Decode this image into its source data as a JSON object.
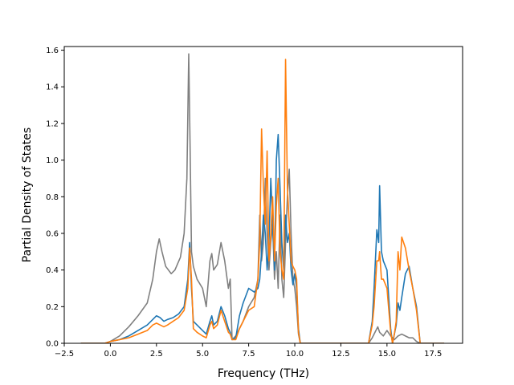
{
  "chart_data": {
    "type": "line",
    "title": "",
    "xlabel": "Frequency (THz)",
    "ylabel": "Partial Density of States",
    "xlim": [
      -2.5,
      19.1
    ],
    "ylim": [
      0,
      1.62
    ],
    "xticks": [
      -2.5,
      0.0,
      2.5,
      5.0,
      7.5,
      10.0,
      12.5,
      15.0,
      17.5
    ],
    "xtick_labels": [
      "−2.5",
      "0.0",
      "2.5",
      "5.0",
      "7.5",
      "10.0",
      "12.5",
      "15.0",
      "17.5"
    ],
    "yticks": [
      0.0,
      0.2,
      0.4,
      0.6,
      0.8,
      1.0,
      1.2,
      1.4,
      1.6
    ],
    "ytick_labels": [
      "0.0",
      "0.2",
      "0.4",
      "0.6",
      "0.8",
      "1.0",
      "1.2",
      "1.4",
      "1.6"
    ],
    "grid": false,
    "legend": "none",
    "series": [
      {
        "color": "#808080",
        "x": [
          -1.6,
          -0.3,
          0.0,
          0.5,
          1.0,
          1.5,
          2.0,
          2.3,
          2.5,
          2.65,
          2.8,
          3.0,
          3.3,
          3.5,
          3.8,
          4.0,
          4.15,
          4.25,
          4.32,
          4.4,
          4.5,
          4.7,
          5.0,
          5.2,
          5.4,
          5.5,
          5.6,
          5.8,
          6.0,
          6.2,
          6.4,
          6.5,
          6.6,
          6.8,
          7.0,
          7.2,
          7.5,
          7.8,
          8.0,
          8.1,
          8.2,
          8.3,
          8.4,
          8.5,
          8.6,
          8.7,
          8.8,
          8.9,
          9.0,
          9.1,
          9.2,
          9.3,
          9.4,
          9.5,
          9.6,
          9.7,
          9.8,
          9.9,
          10.0,
          10.1,
          10.2,
          10.3,
          10.5,
          12.0,
          14.0,
          14.2,
          14.4,
          14.5,
          14.6,
          14.8,
          15.0,
          15.2,
          15.4,
          15.6,
          15.8,
          16.0,
          16.2,
          16.4,
          16.6,
          16.8,
          18.1
        ],
        "y": [
          0.0,
          0.0,
          0.01,
          0.04,
          0.09,
          0.15,
          0.22,
          0.35,
          0.5,
          0.57,
          0.5,
          0.42,
          0.38,
          0.4,
          0.47,
          0.6,
          0.9,
          1.58,
          1.1,
          0.5,
          0.42,
          0.35,
          0.3,
          0.2,
          0.45,
          0.49,
          0.4,
          0.43,
          0.55,
          0.45,
          0.3,
          0.35,
          0.02,
          0.04,
          0.08,
          0.12,
          0.2,
          0.25,
          0.35,
          0.7,
          0.45,
          0.55,
          0.9,
          0.6,
          0.4,
          0.55,
          0.65,
          0.35,
          0.5,
          0.3,
          0.7,
          0.35,
          0.25,
          0.55,
          0.8,
          0.95,
          0.6,
          0.35,
          0.3,
          0.2,
          0.05,
          0.0,
          0.0,
          0.0,
          0.0,
          0.03,
          0.07,
          0.09,
          0.06,
          0.04,
          0.07,
          0.04,
          0.02,
          0.04,
          0.05,
          0.04,
          0.03,
          0.03,
          0.01,
          0.0,
          0.0
        ]
      },
      {
        "color": "#1f77b4",
        "x": [
          -1.6,
          -0.3,
          0.0,
          0.5,
          1.0,
          1.5,
          2.0,
          2.3,
          2.5,
          2.7,
          2.9,
          3.1,
          3.4,
          3.7,
          4.0,
          4.2,
          4.3,
          4.4,
          4.5,
          4.7,
          5.0,
          5.2,
          5.4,
          5.5,
          5.6,
          5.8,
          6.0,
          6.2,
          6.4,
          6.5,
          6.6,
          6.8,
          7.0,
          7.2,
          7.5,
          7.8,
          8.0,
          8.1,
          8.2,
          8.3,
          8.4,
          8.5,
          8.6,
          8.7,
          8.8,
          8.9,
          9.0,
          9.1,
          9.2,
          9.3,
          9.4,
          9.5,
          9.6,
          9.7,
          9.8,
          9.9,
          10.0,
          10.1,
          10.2,
          10.3,
          10.5,
          12.0,
          14.0,
          14.2,
          14.3,
          14.45,
          14.55,
          14.6,
          14.7,
          14.8,
          15.0,
          15.2,
          15.3,
          15.4,
          15.5,
          15.6,
          15.7,
          15.8,
          16.0,
          16.2,
          16.4,
          16.6,
          16.8,
          18.1
        ],
        "y": [
          0.0,
          0.0,
          0.01,
          0.02,
          0.04,
          0.07,
          0.1,
          0.13,
          0.15,
          0.14,
          0.12,
          0.13,
          0.14,
          0.16,
          0.2,
          0.35,
          0.55,
          0.3,
          0.12,
          0.1,
          0.07,
          0.05,
          0.12,
          0.15,
          0.1,
          0.12,
          0.2,
          0.15,
          0.08,
          0.06,
          0.02,
          0.03,
          0.15,
          0.22,
          0.3,
          0.28,
          0.3,
          0.35,
          0.5,
          0.7,
          0.6,
          0.4,
          0.55,
          0.9,
          0.65,
          0.4,
          1.0,
          1.14,
          0.85,
          0.55,
          0.4,
          0.7,
          0.55,
          0.6,
          0.4,
          0.32,
          0.38,
          0.3,
          0.08,
          0.0,
          0.0,
          0.0,
          0.0,
          0.12,
          0.3,
          0.62,
          0.55,
          0.86,
          0.5,
          0.45,
          0.4,
          0.08,
          0.0,
          0.05,
          0.1,
          0.22,
          0.18,
          0.25,
          0.38,
          0.42,
          0.3,
          0.2,
          0.0,
          0.0
        ]
      },
      {
        "color": "#ff7f0e",
        "x": [
          -1.6,
          -0.3,
          0.0,
          0.5,
          1.0,
          1.5,
          2.0,
          2.3,
          2.5,
          2.7,
          2.9,
          3.1,
          3.4,
          3.7,
          4.0,
          4.2,
          4.3,
          4.4,
          4.5,
          4.7,
          5.0,
          5.2,
          5.4,
          5.5,
          5.6,
          5.8,
          6.0,
          6.2,
          6.4,
          6.5,
          6.6,
          6.8,
          7.0,
          7.2,
          7.5,
          7.8,
          8.0,
          8.1,
          8.2,
          8.3,
          8.4,
          8.5,
          8.6,
          8.7,
          8.8,
          8.9,
          9.0,
          9.1,
          9.2,
          9.3,
          9.4,
          9.5,
          9.6,
          9.7,
          9.8,
          9.9,
          10.0,
          10.1,
          10.2,
          10.3,
          10.5,
          12.0,
          14.0,
          14.2,
          14.3,
          14.45,
          14.55,
          14.6,
          14.7,
          14.8,
          15.0,
          15.2,
          15.3,
          15.4,
          15.5,
          15.6,
          15.7,
          15.8,
          16.0,
          16.2,
          16.4,
          16.6,
          16.8,
          18.1
        ],
        "y": [
          0.0,
          0.0,
          0.01,
          0.02,
          0.03,
          0.05,
          0.07,
          0.1,
          0.11,
          0.1,
          0.09,
          0.1,
          0.12,
          0.14,
          0.18,
          0.3,
          0.52,
          0.35,
          0.08,
          0.06,
          0.04,
          0.03,
          0.1,
          0.12,
          0.08,
          0.1,
          0.18,
          0.12,
          0.06,
          0.05,
          0.02,
          0.02,
          0.08,
          0.12,
          0.18,
          0.2,
          0.35,
          0.55,
          1.17,
          0.85,
          0.65,
          1.05,
          0.45,
          0.6,
          0.8,
          0.45,
          0.75,
          0.9,
          0.5,
          0.4,
          0.35,
          1.55,
          0.85,
          0.65,
          0.45,
          0.42,
          0.4,
          0.35,
          0.06,
          0.0,
          0.0,
          0.0,
          0.0,
          0.1,
          0.2,
          0.45,
          0.45,
          0.5,
          0.35,
          0.35,
          0.3,
          0.06,
          0.0,
          0.05,
          0.12,
          0.5,
          0.4,
          0.58,
          0.52,
          0.4,
          0.3,
          0.18,
          0.0,
          0.0
        ]
      }
    ]
  }
}
